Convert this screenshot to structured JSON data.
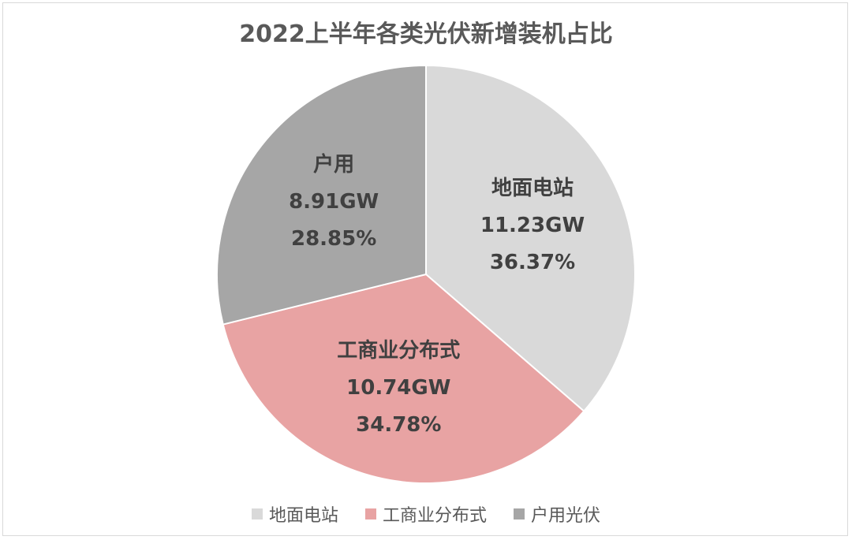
{
  "chart_data": {
    "type": "pie",
    "title": "2022上半年各类光伏新增装机占比",
    "slices": [
      {
        "name": "地面电站",
        "value_label": "11.23GW",
        "percent_label": "36.37%",
        "value": 11.23,
        "percent": 36.37,
        "color": "#d9d9d9"
      },
      {
        "name": "工商业分布式",
        "value_label": "10.74GW",
        "percent_label": "34.78%",
        "value": 10.74,
        "percent": 34.78,
        "color": "#e8a3a3"
      },
      {
        "name": "户用",
        "value_label": "8.91GW",
        "percent_label": "28.85%",
        "value": 8.91,
        "percent": 28.85,
        "color": "#a6a6a6"
      }
    ],
    "legend": [
      "地面电站",
      "工商业分布式",
      "户用光伏"
    ],
    "legend_placement": "bottom"
  }
}
